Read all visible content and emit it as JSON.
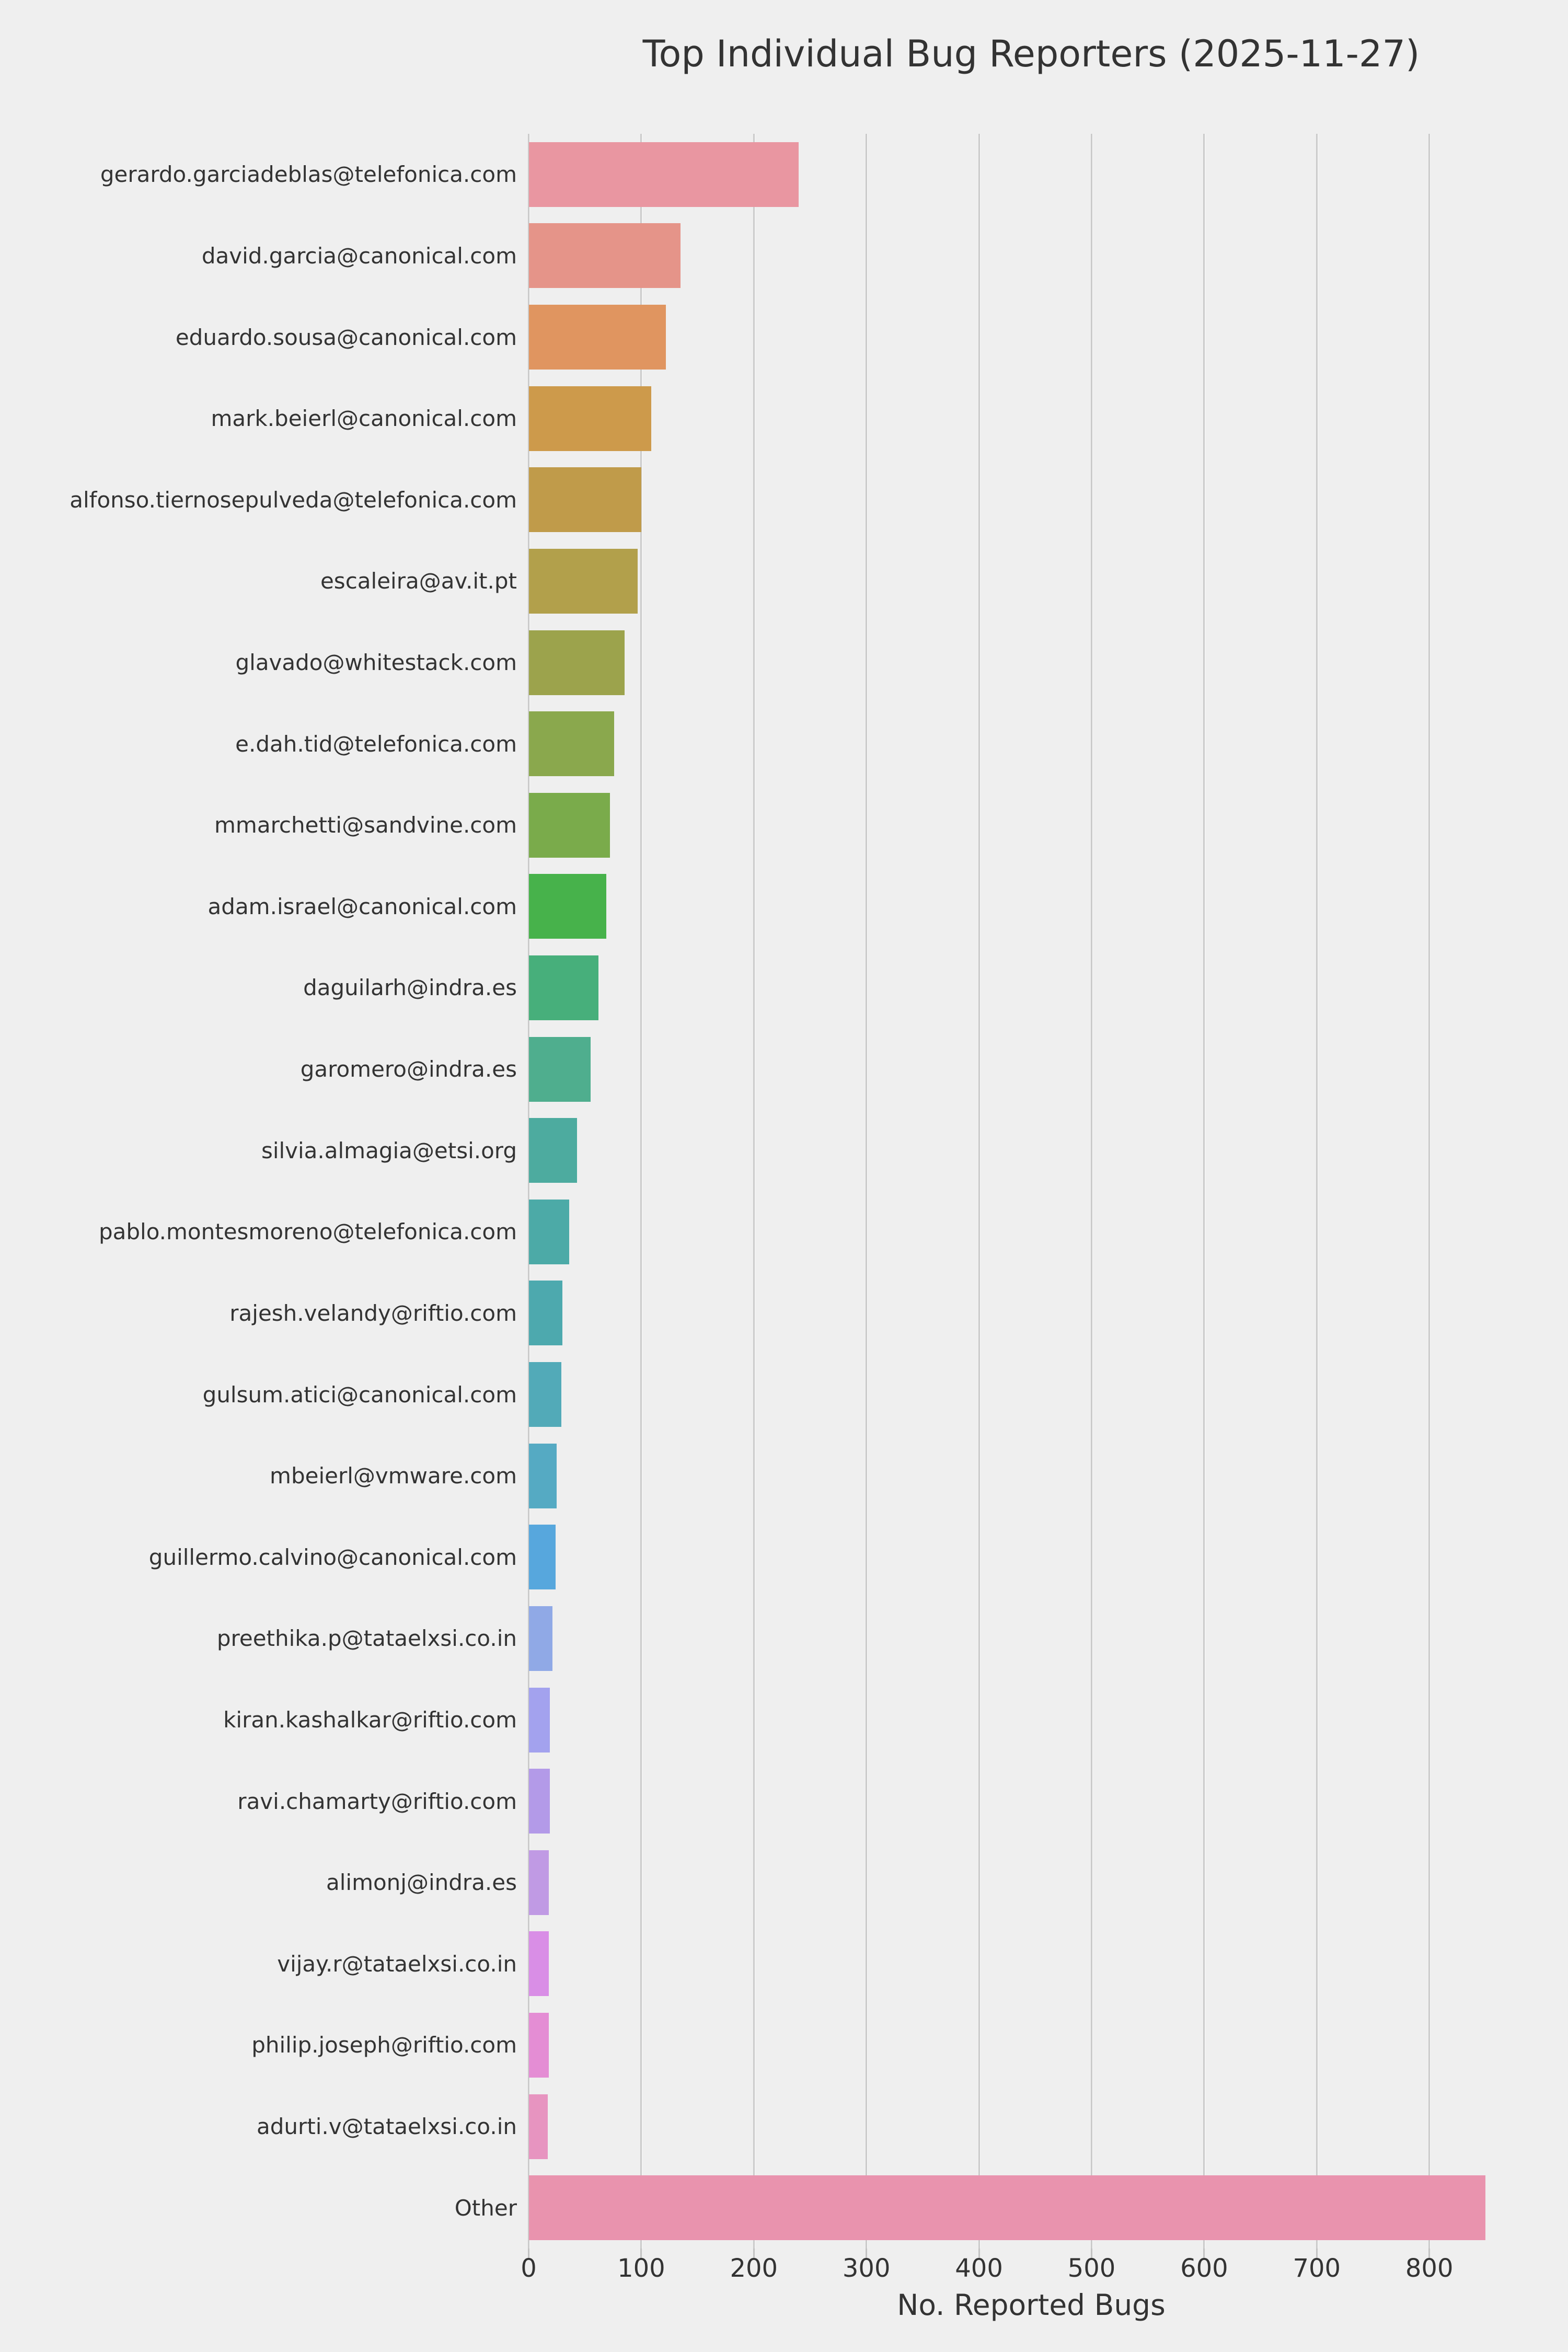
{
  "page": {
    "background_color": "#efefef",
    "text_color": "#333333",
    "gridline_color": "#cbcbcb",
    "tick_mark_color": "#c3c3c3"
  },
  "chart_data": {
    "type": "bar",
    "orientation": "horizontal",
    "title": "Top Individual Bug Reporters (2025-11-27)",
    "xlabel": "No. Reported Bugs",
    "ylabel": "",
    "xlim": [
      0,
      893
    ],
    "xticks": [
      0,
      100,
      200,
      300,
      400,
      500,
      600,
      700,
      800
    ],
    "grid": "vertical gridlines on",
    "legend": "none",
    "categories": [
      "gerardo.garciadeblas@telefonica.com",
      "david.garcia@canonical.com",
      "eduardo.sousa@canonical.com",
      "mark.beierl@canonical.com",
      "alfonso.tiernosepulveda@telefonica.com",
      "escaleira@av.it.pt",
      "glavado@whitestack.com",
      "e.dah.tid@telefonica.com",
      "mmarchetti@sandvine.com",
      "adam.israel@canonical.com",
      "daguilarh@indra.es",
      "garomero@indra.es",
      "silvia.almagia@etsi.org",
      "pablo.montesmoreno@telefonica.com",
      "rajesh.velandy@riftio.com",
      "gulsum.atici@canonical.com",
      "mbeierl@vmware.com",
      "guillermo.calvino@canonical.com",
      "preethika.p@tataelxsi.co.in",
      "kiran.kashalkar@riftio.com",
      "ravi.chamarty@riftio.com",
      "alimonj@indra.es",
      "vijay.r@tataelxsi.co.in",
      "philip.joseph@riftio.com",
      "adurti.v@tataelxsi.co.in",
      "Other"
    ],
    "values": [
      240,
      135,
      122,
      109,
      100,
      97,
      85,
      76,
      72,
      69,
      62,
      55,
      43,
      36,
      30,
      29,
      25,
      24,
      21,
      19,
      19,
      18,
      18,
      18,
      17,
      850
    ],
    "bar_colors": [
      "#e996a1",
      "#e59489",
      "#e09560",
      "#cd9a4b",
      "#c09b4a",
      "#b2a04b",
      "#9ca34c",
      "#8aa84d",
      "#7aab4b",
      "#47b24b",
      "#47af7b",
      "#4fae8e",
      "#4dab9f",
      "#4caaa7",
      "#4da9ae",
      "#52aab8",
      "#55aac3",
      "#57a7dd",
      "#90a9e6",
      "#a3a2ee",
      "#b39ae8",
      "#c09ae4",
      "#d98ee6",
      "#e48dd4",
      "#e794c0",
      "#e993ae"
    ]
  }
}
